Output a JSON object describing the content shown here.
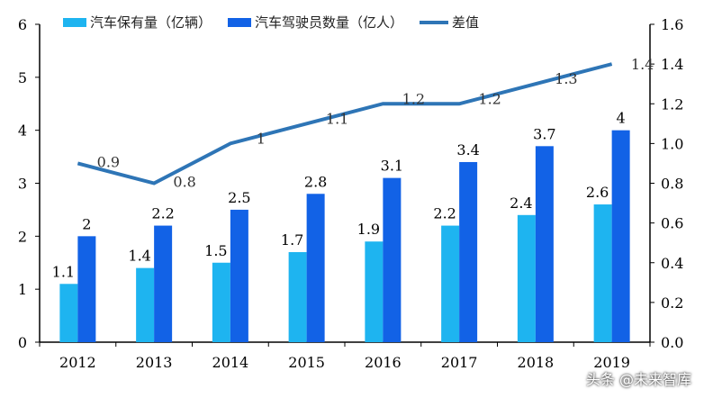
{
  "chart_data": {
    "type": "bar+line",
    "categories": [
      "2012",
      "2013",
      "2014",
      "2015",
      "2016",
      "2017",
      "2018",
      "2019"
    ],
    "series": [
      {
        "name": "汽车保有量（亿辆）",
        "type": "bar",
        "axis": "left",
        "color": "#1EB4F0",
        "values": [
          1.1,
          1.4,
          1.5,
          1.7,
          1.9,
          2.2,
          2.4,
          2.6
        ]
      },
      {
        "name": "汽车驾驶员数量（亿人）",
        "type": "bar",
        "axis": "left",
        "color": "#1262E6",
        "values": [
          2,
          2.2,
          2.5,
          2.8,
          3.1,
          3.4,
          3.7,
          4
        ]
      },
      {
        "name": "差值",
        "type": "line",
        "axis": "right",
        "color": "#2E75B6",
        "values": [
          0.9,
          0.8,
          1,
          1.1,
          1.2,
          1.2,
          1.3,
          1.4
        ]
      }
    ],
    "left_axis": {
      "ylim": [
        0,
        6
      ],
      "ticks": [
        "0",
        "1",
        "2",
        "3",
        "4",
        "5",
        "6"
      ]
    },
    "right_axis": {
      "ylim": [
        0,
        1.6
      ],
      "ticks": [
        "0.0",
        "0.2",
        "0.4",
        "0.6",
        "0.8",
        "1.0",
        "1.2",
        "1.4",
        "1.6"
      ]
    },
    "legend": "top",
    "grid": false
  },
  "watermark": "头条 @未来智库"
}
